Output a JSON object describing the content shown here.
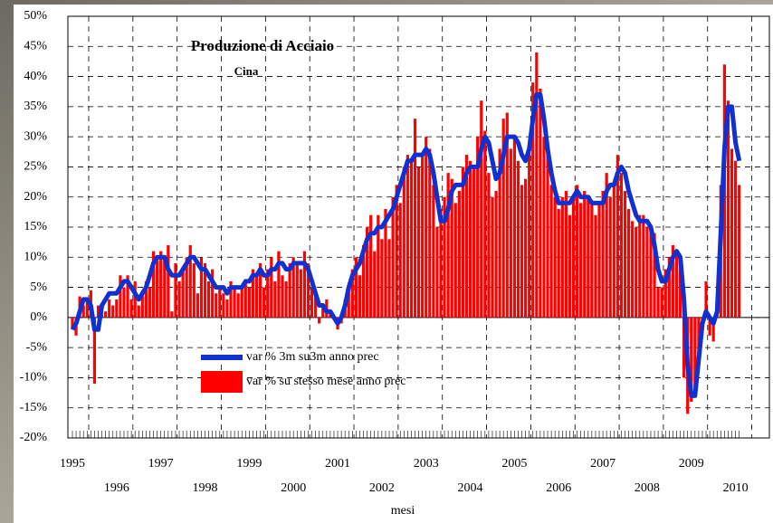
{
  "chart_data": {
    "type": "bar",
    "title": "Produzione di Acciaio",
    "subtitle": "Cina",
    "x_label": "mesi",
    "categories": [
      "1995",
      null,
      null,
      null,
      null,
      null,
      null,
      null,
      null,
      null,
      null,
      null,
      "1996",
      null,
      null,
      null,
      null,
      null,
      null,
      null,
      null,
      null,
      null,
      null,
      "1997",
      null,
      null,
      null,
      null,
      null,
      null,
      null,
      null,
      null,
      null,
      null,
      "1998",
      null,
      null,
      null,
      null,
      null,
      null,
      null,
      null,
      null,
      null,
      null,
      "1999",
      null,
      null,
      null,
      null,
      null,
      null,
      null,
      null,
      null,
      null,
      null,
      "2000",
      null,
      null,
      null,
      null,
      null,
      null,
      null,
      null,
      null,
      null,
      null,
      "2001",
      null,
      null,
      null,
      null,
      null,
      null,
      null,
      null,
      null,
      null,
      null,
      "2002",
      null,
      null,
      null,
      null,
      null,
      null,
      null,
      null,
      null,
      null,
      null,
      "2003",
      null,
      null,
      null,
      null,
      null,
      null,
      null,
      null,
      null,
      null,
      null,
      "2004",
      null,
      null,
      null,
      null,
      null,
      null,
      null,
      null,
      null,
      null,
      null,
      "2005",
      null,
      null,
      null,
      null,
      null,
      null,
      null,
      null,
      null,
      null,
      null,
      "2006",
      null,
      null,
      null,
      null,
      null,
      null,
      null,
      null,
      null,
      null,
      null,
      "2007",
      null,
      null,
      null,
      null,
      null,
      null,
      null,
      null,
      null,
      null,
      null,
      "2008",
      null,
      null,
      null,
      null,
      null,
      null,
      null,
      null,
      null,
      null,
      null,
      "2009",
      null,
      null,
      null,
      null,
      null,
      null,
      null,
      null,
      null,
      null,
      null,
      "2010",
      null
    ],
    "series": [
      {
        "name": "var %  su stesso mese  anno prec",
        "type": "bar",
        "color": "#ff0000",
        "values": [
          -2,
          -3,
          3.5,
          2,
          3,
          4.5,
          -11,
          2,
          1,
          1,
          3,
          2,
          3,
          7,
          5,
          7,
          3,
          6,
          2,
          4,
          6,
          5,
          11,
          10,
          11,
          10,
          12,
          1,
          9,
          6,
          8,
          10,
          12,
          9,
          4,
          10,
          9,
          6,
          8,
          4,
          5,
          4,
          3,
          6,
          5,
          4,
          5,
          6,
          5,
          8,
          7,
          9,
          5,
          8,
          10,
          6,
          11,
          7,
          6,
          9,
          10,
          9,
          8,
          11,
          9,
          5,
          4,
          -1,
          2,
          3,
          1,
          0,
          -2,
          -1,
          3,
          5,
          8,
          10,
          7,
          12,
          15,
          17,
          11,
          17,
          13,
          18,
          13,
          20,
          22,
          19,
          25,
          27,
          26,
          33,
          25,
          27,
          30,
          28,
          22,
          15,
          18,
          20,
          24,
          23,
          19,
          21,
          25,
          27,
          26,
          25,
          30,
          36,
          31,
          24,
          20,
          21,
          28,
          33,
          34,
          28,
          30,
          26,
          22,
          23,
          28,
          39,
          44,
          38,
          30,
          29,
          22,
          20,
          18,
          20,
          21,
          17,
          20,
          22,
          19,
          21,
          20,
          19,
          17,
          19,
          21,
          24,
          20,
          22,
          27,
          24,
          21,
          18,
          16,
          15,
          17,
          17,
          15,
          15,
          14,
          5,
          5,
          8,
          10,
          12,
          11,
          10,
          -10,
          -16,
          -14,
          -12,
          -8,
          -1,
          6,
          -3,
          -4,
          2,
          22,
          42,
          36,
          28,
          26,
          22
        ]
      },
      {
        "name": "var % 3m su3m  anno prec",
        "type": "line",
        "color": "#1030d0",
        "values": [
          -2,
          -1,
          1,
          3,
          3,
          2,
          -2,
          -2,
          2,
          3,
          4,
          4,
          4,
          5,
          6,
          6,
          5,
          4,
          3,
          4,
          5,
          7,
          9,
          10,
          10,
          10,
          8,
          7,
          7,
          7,
          8,
          9,
          10,
          10,
          9,
          8,
          8,
          7,
          6,
          5,
          5,
          5,
          4,
          5,
          5,
          5,
          5,
          6,
          6,
          7,
          7,
          8,
          7,
          7,
          8,
          8,
          9,
          9,
          8,
          8,
          9,
          9,
          9,
          9,
          8,
          6,
          4,
          2,
          2,
          1,
          1,
          0,
          -1,
          0,
          2,
          5,
          7,
          8,
          9,
          11,
          13,
          14,
          14,
          15,
          15,
          16,
          17,
          18,
          20,
          22,
          24,
          26,
          26,
          27,
          27,
          27,
          28,
          27,
          24,
          20,
          16,
          16,
          18,
          21,
          22,
          22,
          22,
          24,
          25,
          25,
          25,
          28,
          30,
          29,
          26,
          23,
          24,
          27,
          30,
          30,
          30,
          29,
          27,
          26,
          28,
          33,
          37,
          37,
          33,
          28,
          24,
          21,
          19,
          19,
          19,
          19,
          20,
          21,
          20,
          20,
          20,
          19,
          19,
          19,
          19,
          21,
          22,
          22,
          24,
          25,
          24,
          21,
          19,
          17,
          16,
          16,
          16,
          15,
          12,
          8,
          6,
          6,
          8,
          10,
          11,
          10,
          3,
          -8,
          -13,
          -13,
          -7,
          -1,
          1,
          0,
          -1,
          1,
          14,
          28,
          35,
          35,
          29,
          26
        ]
      }
    ],
    "ylim": [
      -20,
      50
    ],
    "yticks": [
      {
        "value": -20,
        "label": "-20%"
      },
      {
        "value": -15,
        "label": "-15%"
      },
      {
        "value": -10,
        "label": "-10%"
      },
      {
        "value": -5,
        "label": "-5%"
      },
      {
        "value": 0,
        "label": "0%"
      },
      {
        "value": 5,
        "label": "5%"
      },
      {
        "value": 10,
        "label": "10%"
      },
      {
        "value": 15,
        "label": "15%"
      },
      {
        "value": 20,
        "label": "20%"
      },
      {
        "value": 25,
        "label": "25%"
      },
      {
        "value": 30,
        "label": "30%"
      },
      {
        "value": 35,
        "label": "35%"
      },
      {
        "value": 40,
        "label": "40%"
      },
      {
        "value": 45,
        "label": "45%"
      },
      {
        "value": 50,
        "label": "50%"
      }
    ],
    "grid": true
  }
}
